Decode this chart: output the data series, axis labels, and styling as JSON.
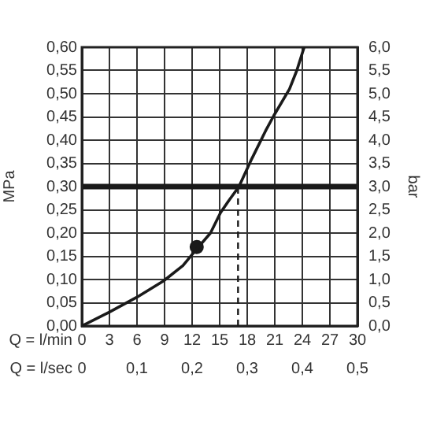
{
  "chart_data": {
    "type": "line",
    "xlabel": "Q = l/min",
    "x2label": "Q = l/sec",
    "ylabel": "MPa",
    "y2label": "bar",
    "xlim": [
      0,
      30
    ],
    "xticks": [
      0,
      3,
      6,
      9,
      12,
      15,
      18,
      21,
      24,
      27,
      30
    ],
    "x2lim": [
      0,
      0.5
    ],
    "x2ticks": [
      0,
      {
        "value": 0.1,
        "label": "0,1"
      },
      {
        "value": 0.2,
        "label": "0,2"
      },
      {
        "value": 0.3,
        "label": "0,3"
      },
      {
        "value": 0.4,
        "label": "0,4"
      },
      {
        "value": 0.5,
        "label": "0,5"
      }
    ],
    "ylim": [
      0,
      0.6
    ],
    "yticks": [
      {
        "value": 0,
        "label": "0,00"
      },
      {
        "value": 0.05,
        "label": "0,05"
      },
      {
        "value": 0.1,
        "label": "0,10"
      },
      {
        "value": 0.15,
        "label": "0,15"
      },
      {
        "value": 0.2,
        "label": "0,20"
      },
      {
        "value": 0.25,
        "label": "0,25"
      },
      {
        "value": 0.3,
        "label": "0,30"
      },
      {
        "value": 0.35,
        "label": "0,35"
      },
      {
        "value": 0.4,
        "label": "0,40"
      },
      {
        "value": 0.45,
        "label": "0,45"
      },
      {
        "value": 0.5,
        "label": "0,50"
      },
      {
        "value": 0.55,
        "label": "0,55"
      },
      {
        "value": 0.6,
        "label": "0,60"
      }
    ],
    "y2lim": [
      0,
      6
    ],
    "y2ticks": [
      {
        "value": 0,
        "label": "0,0"
      },
      {
        "value": 0.5,
        "label": "0,5"
      },
      {
        "value": 1,
        "label": "1,0"
      },
      {
        "value": 1.5,
        "label": "1,5"
      },
      {
        "value": 2,
        "label": "2,0"
      },
      {
        "value": 2.5,
        "label": "2,5"
      },
      {
        "value": 3,
        "label": "3,0"
      },
      {
        "value": 3.5,
        "label": "3,5"
      },
      {
        "value": 4,
        "label": "4,0"
      },
      {
        "value": 4.5,
        "label": "4,5"
      },
      {
        "value": 5,
        "label": "5,0"
      },
      {
        "value": 5.5,
        "label": "5,5"
      },
      {
        "value": 6,
        "label": "6,0"
      }
    ],
    "series": [
      {
        "color": "#1a1a1a",
        "marker": "none",
        "line_style": "solid",
        "x": [
          0,
          3,
          6,
          8.9,
          11,
          12.6,
          14,
          15.1,
          16,
          17.1,
          18.5,
          20,
          20.9,
          22.6,
          23.4,
          24.2
        ],
        "values": [
          0,
          0.03,
          0.062,
          0.097,
          0.13,
          0.168,
          0.2,
          0.244,
          0.27,
          0.3,
          0.36,
          0.42,
          0.453,
          0.51,
          0.55,
          0.6
        ]
      },
      {
        "type": "line",
        "color": "#1a1a1a",
        "marker": "none",
        "line_style": "dashed",
        "x": [
          17,
          17
        ],
        "values": [
          0,
          0.3
        ]
      },
      {
        "type": "scatter",
        "color": "#1a1a1a",
        "marker": "circle",
        "x": [
          12.5
        ],
        "values": [
          0.17
        ]
      }
    ],
    "ref_lines": [
      {
        "axis": "y",
        "value": 0.3,
        "color": "#1a1a1a"
      }
    ],
    "grid": true,
    "legend": false
  }
}
